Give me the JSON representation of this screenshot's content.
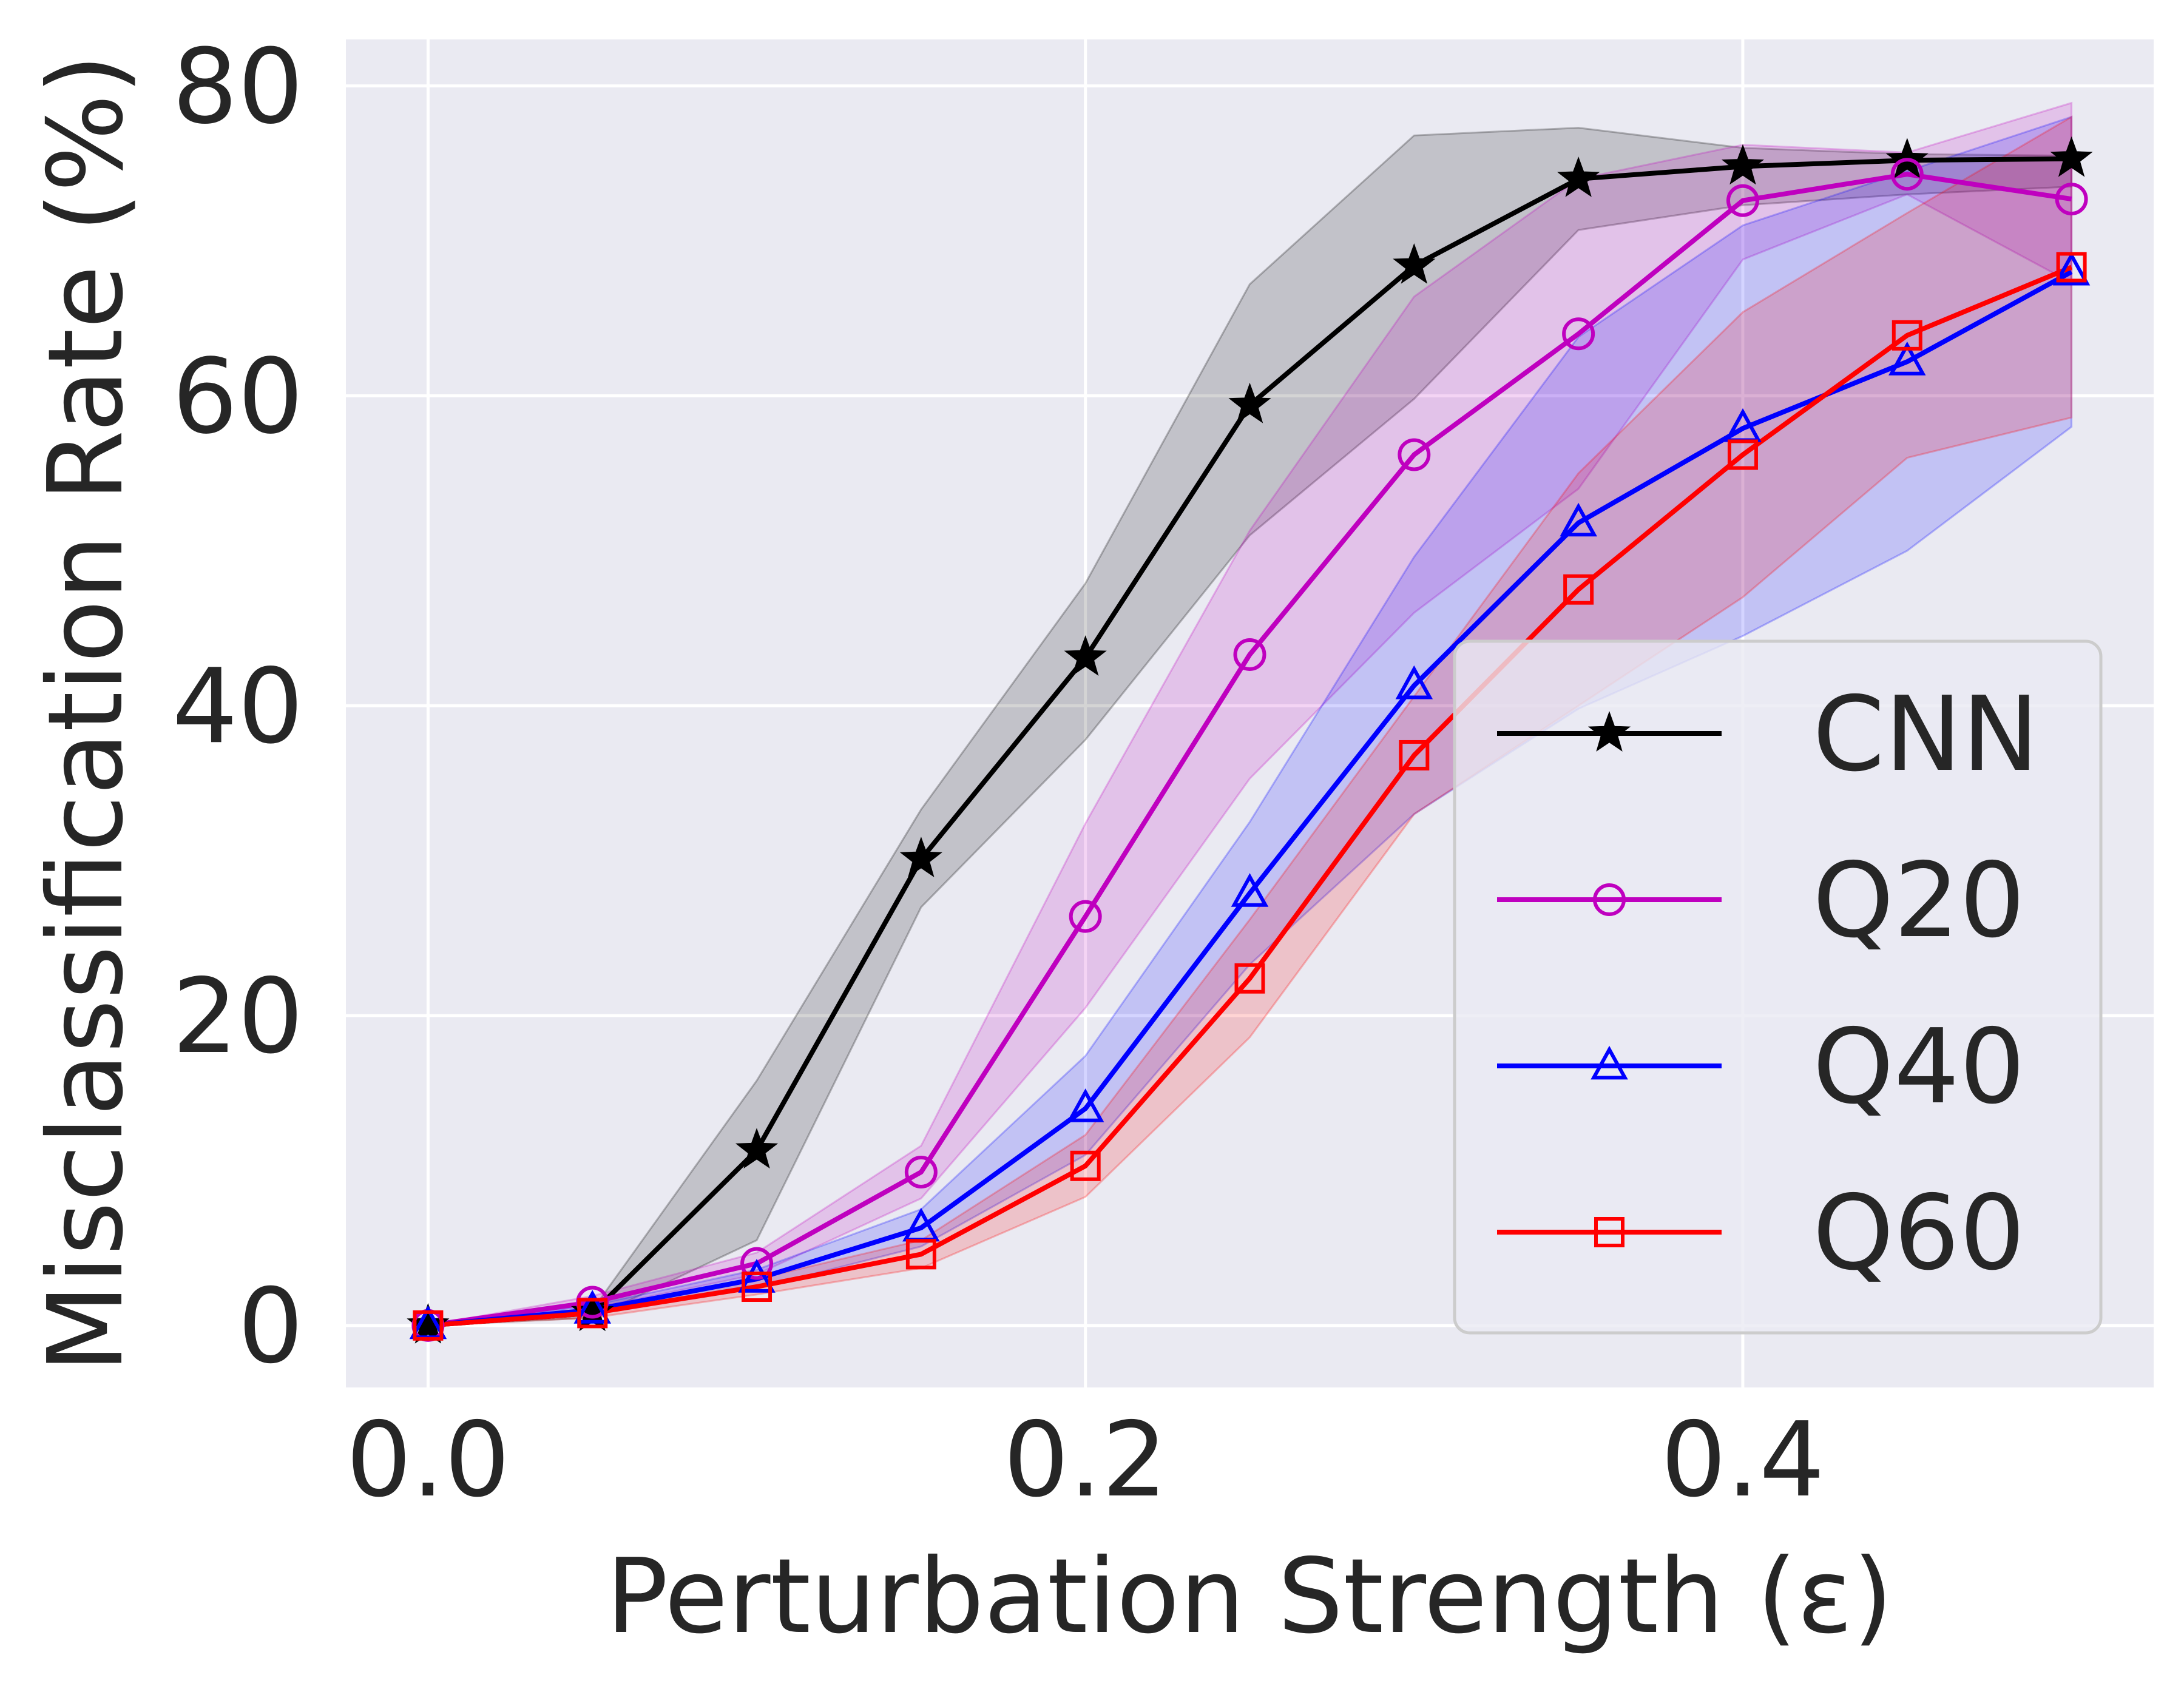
{
  "chart_data": {
    "type": "line",
    "title": "",
    "xlabel": "Perturbation Strength (ε)",
    "ylabel": "Misclassification Rate (%)",
    "xlim": [
      -0.025,
      0.525
    ],
    "ylim": [
      -4,
      83
    ],
    "xticks": [
      0.0,
      0.2,
      0.4
    ],
    "xtick_labels": [
      "0.0",
      "0.2",
      "0.4"
    ],
    "yticks": [
      0,
      20,
      40,
      60,
      80
    ],
    "ytick_labels": [
      "0",
      "20",
      "40",
      "60",
      "80"
    ],
    "grid": true,
    "legend_position": "lower-right",
    "x": [
      0.0,
      0.05,
      0.1,
      0.15,
      0.2,
      0.25,
      0.3,
      0.35,
      0.4,
      0.45,
      0.5
    ],
    "series": [
      {
        "name": "CNN",
        "color": "#000000",
        "marker": "star",
        "values": [
          0,
          0.8,
          11.3,
          30.1,
          43.1,
          59.4,
          68.4,
          74.0,
          74.8,
          75.2,
          75.3
        ],
        "band_lower": [
          0,
          0.5,
          5.5,
          27.0,
          37.8,
          51.0,
          59.8,
          70.7,
          72.3,
          73.0,
          73.5
        ],
        "band_upper": [
          0,
          1.0,
          15.8,
          33.3,
          47.9,
          67.2,
          76.8,
          77.3,
          76.0,
          75.6,
          75.5
        ]
      },
      {
        "name": "Q20",
        "color": "#bf00bf",
        "marker": "circle",
        "values": [
          0,
          1.5,
          4.0,
          9.9,
          26.4,
          43.3,
          56.2,
          64.0,
          72.6,
          74.3,
          72.7
        ],
        "band_lower": [
          0,
          1.1,
          3.3,
          8.2,
          20.5,
          35.3,
          46.0,
          54.0,
          68.8,
          73.0,
          67.3
        ],
        "band_upper": [
          0,
          1.9,
          4.7,
          11.6,
          32.4,
          51.3,
          66.4,
          74.0,
          76.2,
          75.7,
          78.9
        ]
      },
      {
        "name": "Q40",
        "color": "#0000ff",
        "marker": "triangle",
        "values": [
          0,
          1.0,
          3.0,
          6.3,
          14.0,
          27.9,
          41.3,
          51.8,
          57.9,
          62.2,
          68.0
        ],
        "band_lower": [
          0,
          0.7,
          2.4,
          5.1,
          11.0,
          23.3,
          33.0,
          39.8,
          44.5,
          50.0,
          58.0
        ],
        "band_upper": [
          0,
          1.3,
          3.6,
          7.5,
          17.4,
          32.5,
          49.6,
          63.8,
          71.0,
          74.5,
          78.0
        ]
      },
      {
        "name": "Q60",
        "color": "#ff0000",
        "marker": "square",
        "values": [
          0,
          0.8,
          2.5,
          4.6,
          10.3,
          22.4,
          36.8,
          47.5,
          56.2,
          63.9,
          68.3
        ],
        "band_lower": [
          0,
          0.5,
          2.0,
          3.7,
          8.3,
          18.6,
          33.0,
          40.0,
          47.0,
          56.0,
          58.6
        ],
        "band_upper": [
          0,
          1.1,
          3.0,
          5.5,
          12.3,
          26.2,
          40.6,
          55.0,
          65.4,
          71.8,
          78.0
        ]
      }
    ]
  }
}
